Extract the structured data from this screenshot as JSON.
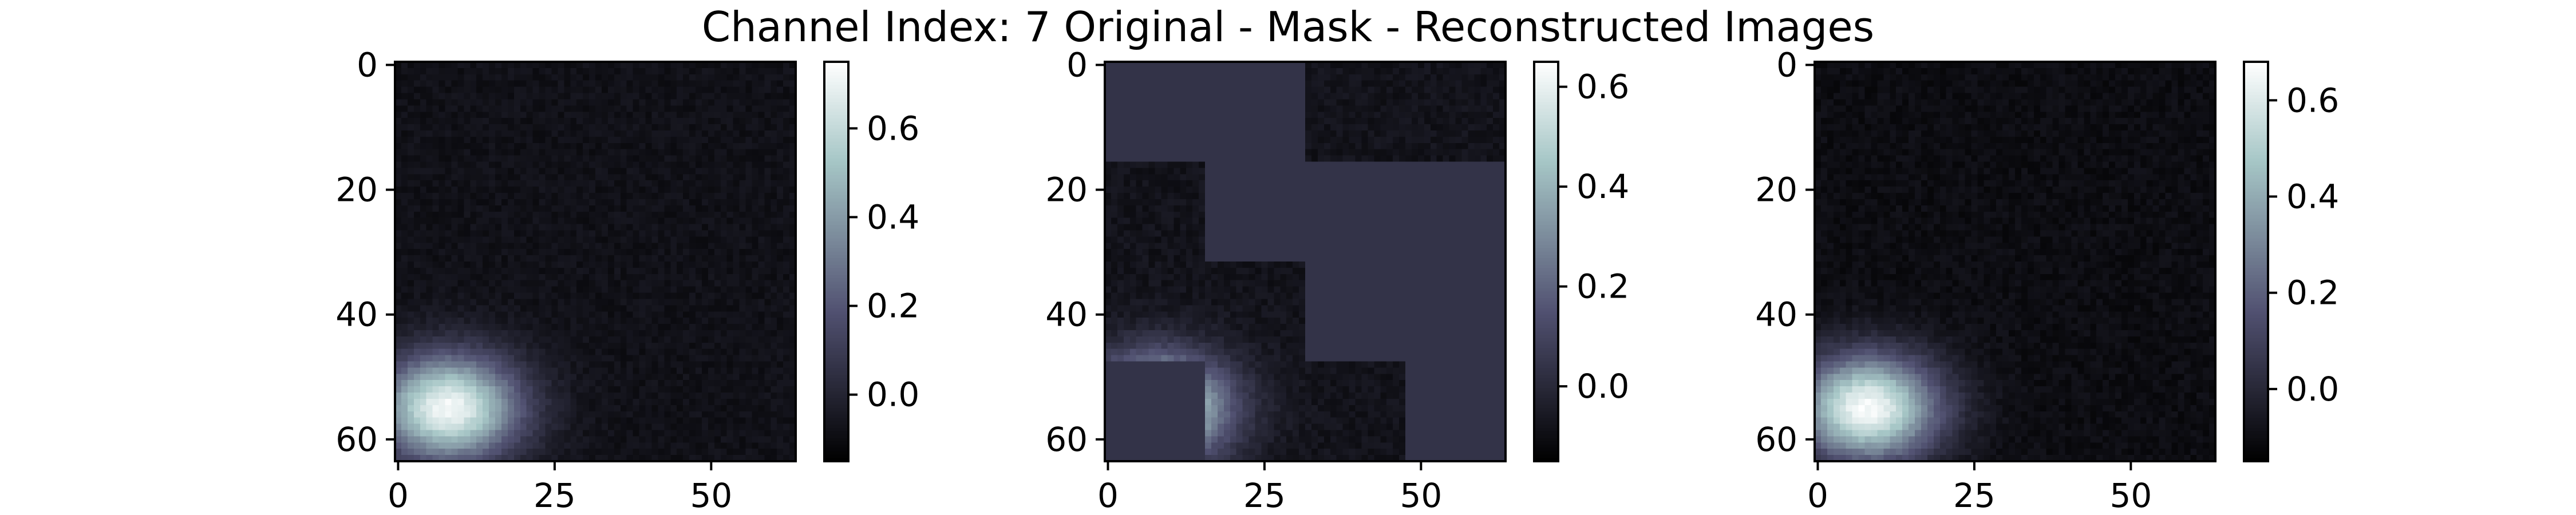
{
  "chart_data": {
    "type": "heatmap",
    "title": "Channel Index: 7 Original - Mask - Reconstructed Images",
    "colormap": "bone",
    "grid": false,
    "image_shape": [
      64,
      64
    ],
    "x_ticks": [
      0,
      25,
      50
    ],
    "y_ticks": [
      0,
      20,
      40,
      60
    ],
    "panels": [
      {
        "name": "",
        "vmin": -0.15,
        "vmax": 0.75,
        "colorbar_ticks": [
          0.0,
          0.2,
          0.4,
          0.6
        ],
        "colorbar_tick_labels": [
          "0.0",
          "0.2",
          "0.4",
          "0.6"
        ],
        "background_value": -0.08,
        "blob": {
          "center_x": 8,
          "center_y": 55,
          "peak": 0.72,
          "sigma_x": 8,
          "sigma_y": 6
        },
        "masked_value": null,
        "visible_regions": []
      },
      {
        "name": "",
        "vmin": -0.15,
        "vmax": 0.65,
        "colorbar_ticks": [
          0.0,
          0.2,
          0.4,
          0.6
        ],
        "colorbar_tick_labels": [
          "0.0",
          "0.2",
          "0.4",
          "0.6"
        ],
        "background_value": -0.08,
        "blob": {
          "center_x": 8,
          "center_y": 55,
          "peak": 0.62,
          "sigma_x": 8,
          "sigma_y": 6
        },
        "masked_value": 0.04,
        "visible_regions": [
          {
            "x0": 32,
            "x1": 64,
            "y0": 0,
            "y1": 16
          },
          {
            "x0": 0,
            "x1": 16,
            "y0": 16,
            "y1": 48
          },
          {
            "x0": 16,
            "x1": 32,
            "y0": 32,
            "y1": 48
          },
          {
            "x0": 16,
            "x1": 48,
            "y0": 48,
            "y1": 64
          }
        ]
      },
      {
        "name": "",
        "vmin": -0.15,
        "vmax": 0.68,
        "colorbar_ticks": [
          0.0,
          0.2,
          0.4,
          0.6
        ],
        "colorbar_tick_labels": [
          "0.0",
          "0.2",
          "0.4",
          "0.6"
        ],
        "background_value": -0.1,
        "blob": {
          "center_x": 8,
          "center_y": 55,
          "peak": 0.66,
          "sigma_x": 8,
          "sigma_y": 6
        },
        "masked_value": null,
        "visible_regions": []
      }
    ]
  }
}
